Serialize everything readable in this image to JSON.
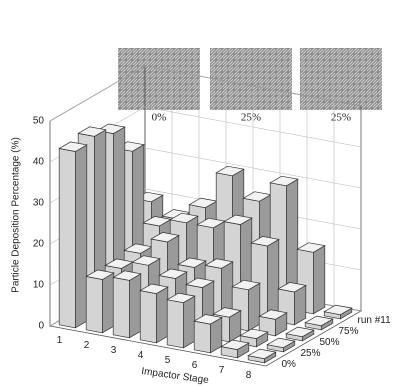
{
  "chart_data": {
    "type": "bar3d",
    "z_label": "Particle Deposition Percentage (%)",
    "x_label": "Impactor Stage",
    "categories": [
      "1",
      "2",
      "3",
      "4",
      "5",
      "6",
      "7",
      "8"
    ],
    "series": [
      {
        "name": "0%",
        "color": "#d4d4d4",
        "values": [
          43,
          13,
          14,
          12,
          11,
          7,
          2,
          1
        ]
      },
      {
        "name": "25%",
        "color": "#d4d4d4",
        "values": [
          44,
          13,
          15,
          13,
          12,
          6,
          2,
          1
        ]
      },
      {
        "name": "50%",
        "color": "#d4d4d4",
        "values": [
          42,
          14,
          18,
          13,
          14,
          10,
          4,
          1
        ]
      },
      {
        "name": "75%",
        "color": "#d4d4d4",
        "values": [
          35,
          18,
          20,
          20,
          22,
          18,
          8,
          1
        ]
      },
      {
        "name": "run #11",
        "color": "#d4d4d4",
        "values": [
          20,
          17,
          21,
          30,
          25,
          30,
          15,
          1
        ]
      }
    ],
    "zlim": [
      0,
      50
    ],
    "zticks": [
      0,
      10,
      20,
      30,
      40,
      50
    ],
    "grid": true,
    "insets": [
      {
        "label": "0%"
      },
      {
        "label": "25%"
      },
      {
        "label": "25%"
      }
    ]
  }
}
